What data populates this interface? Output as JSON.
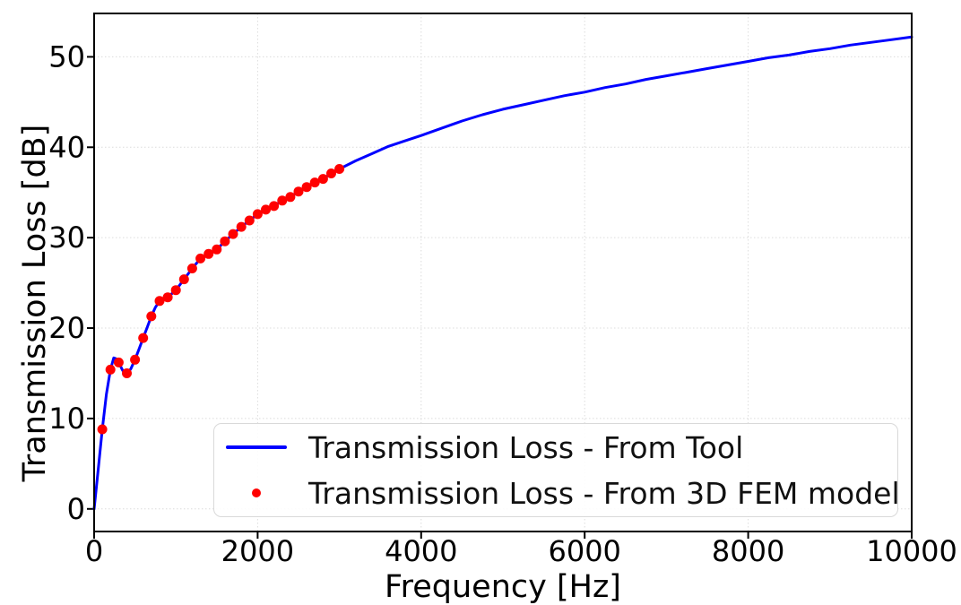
{
  "figure": {
    "background": "#ffffff"
  },
  "chart_data": {
    "type": "line",
    "title": "",
    "xlabel": "Frequency [Hz]",
    "ylabel": "Transmission Loss [dB]",
    "xlim": [
      0,
      10000
    ],
    "ylim": [
      -2.5,
      54.8
    ],
    "x_ticks": [
      "0",
      "2000",
      "4000",
      "6000",
      "8000",
      "10000"
    ],
    "x_tick_values": [
      0,
      2000,
      4000,
      6000,
      8000,
      10000
    ],
    "y_ticks": [
      "0",
      "10",
      "20",
      "30",
      "40",
      "50"
    ],
    "y_tick_values": [
      0,
      10,
      20,
      30,
      40,
      50
    ],
    "grid": true,
    "grid_style": "dotted",
    "grid_color": "#dcdcdc",
    "spine_color": "#000000",
    "legend_position": "lower-right-inside",
    "series": [
      {
        "name": "Transmission Loss - From Tool",
        "type": "line",
        "color": "#0000ff",
        "line_width": 3,
        "x": [
          0,
          50,
          100,
          150,
          200,
          240,
          270,
          300,
          350,
          400,
          450,
          500,
          550,
          600,
          650,
          700,
          750,
          800,
          850,
          900,
          950,
          1000,
          1100,
          1200,
          1300,
          1400,
          1500,
          1600,
          1700,
          1800,
          1900,
          2000,
          2100,
          2200,
          2300,
          2400,
          2500,
          2600,
          2700,
          2800,
          2900,
          3000,
          3200,
          3400,
          3600,
          3800,
          4000,
          4250,
          4500,
          4750,
          5000,
          5250,
          5500,
          5750,
          6000,
          6250,
          6500,
          6750,
          7000,
          7250,
          7500,
          7750,
          8000,
          8250,
          8500,
          8750,
          9000,
          9250,
          9500,
          9750,
          10000
        ],
        "y": [
          0,
          4.4,
          8.8,
          12.7,
          15.4,
          16.7,
          16.6,
          16.2,
          15.3,
          14.9,
          15.5,
          16.5,
          17.7,
          18.9,
          20.1,
          21.3,
          22.3,
          23.0,
          23.2,
          23.4,
          23.8,
          24.2,
          25.4,
          26.6,
          27.7,
          28.2,
          28.7,
          29.6,
          30.4,
          31.2,
          31.9,
          32.6,
          33.1,
          33.5,
          34.1,
          34.5,
          35.1,
          35.6,
          36.1,
          36.5,
          37.1,
          37.6,
          38.5,
          39.3,
          40.1,
          40.7,
          41.3,
          42.1,
          42.9,
          43.6,
          44.2,
          44.7,
          45.2,
          45.7,
          46.1,
          46.6,
          47.0,
          47.5,
          47.9,
          48.3,
          48.7,
          49.1,
          49.5,
          49.9,
          50.2,
          50.6,
          50.9,
          51.3,
          51.6,
          51.9,
          52.2
        ]
      },
      {
        "name": "Transmission Loss - From 3D FEM model",
        "type": "scatter",
        "color": "#ff0000",
        "marker_radius": 5.5,
        "x": [
          100,
          200,
          300,
          400,
          500,
          600,
          700,
          800,
          900,
          1000,
          1100,
          1200,
          1300,
          1400,
          1500,
          1600,
          1700,
          1800,
          1900,
          2000,
          2100,
          2200,
          2300,
          2400,
          2500,
          2600,
          2700,
          2800,
          2900,
          3000
        ],
        "y": [
          8.8,
          15.4,
          16.2,
          15.0,
          16.5,
          18.9,
          21.3,
          23.0,
          23.4,
          24.2,
          25.4,
          26.6,
          27.7,
          28.2,
          28.7,
          29.6,
          30.4,
          31.2,
          31.9,
          32.6,
          33.1,
          33.5,
          34.1,
          34.5,
          35.1,
          35.6,
          36.1,
          36.5,
          37.1,
          37.6
        ]
      }
    ]
  }
}
